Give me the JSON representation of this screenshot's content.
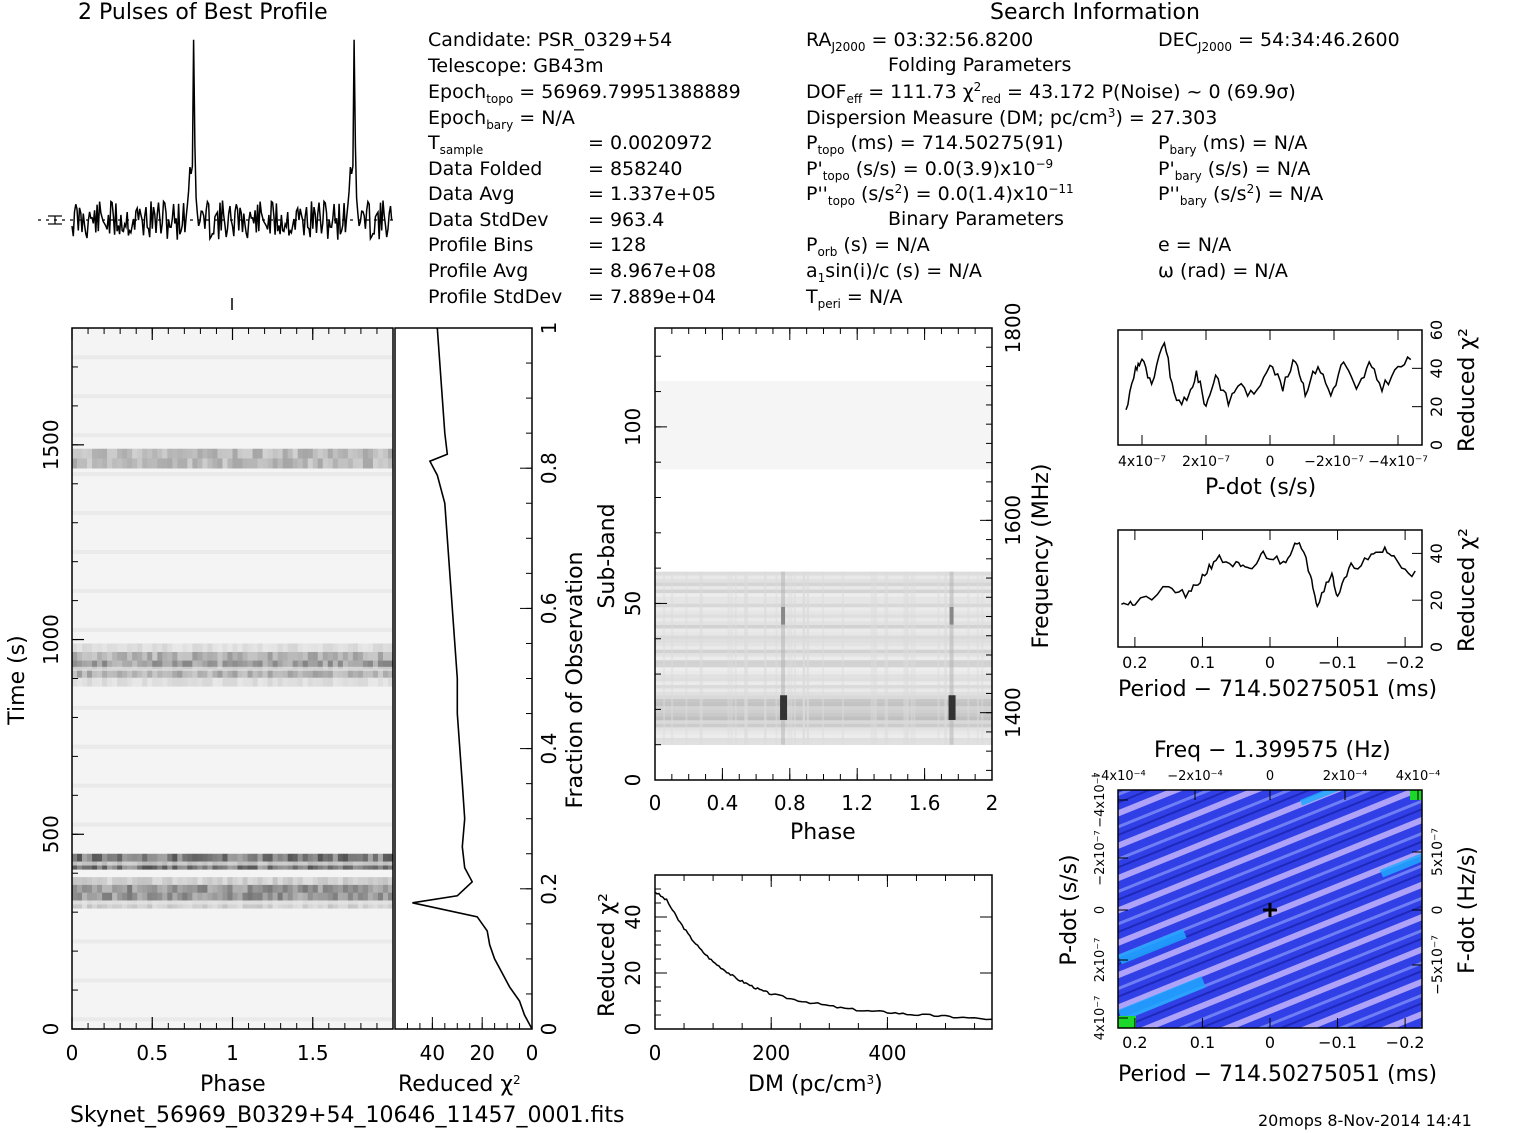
{
  "header": {
    "profile_title": "2 Pulses of Best Profile",
    "search_title": "Search Information",
    "folding_title": "Folding Parameters",
    "binary_title": "Binary Parameters",
    "filename": "Skynet_56969_B0329+54_10646_11457_0001.fits",
    "footer_right": "20mops  8-Nov-2014 14:41"
  },
  "info_left": [
    {
      "label": "Candidate:  PSR_0329+54",
      "value": ""
    },
    {
      "label": "Telescope:  GB43m",
      "value": ""
    },
    {
      "label": "Epoch_topo = 56969.79951388889",
      "value": ""
    },
    {
      "label": "Epoch_bary = N/A",
      "value": ""
    },
    {
      "label": "T_sample",
      "value": "=   0.0020972"
    },
    {
      "label": "Data Folded",
      "value": "=   858240"
    },
    {
      "label": "Data Avg",
      "value": "=   1.337e+05"
    },
    {
      "label": "Data StdDev",
      "value": "=   963.4"
    },
    {
      "label": "Profile Bins",
      "value": "=   128"
    },
    {
      "label": "Profile Avg",
      "value": "=   8.967e+08"
    },
    {
      "label": "Profile StdDev",
      "value": "=   7.889e+04"
    }
  ],
  "info_mid": [
    "RA_J2000 = 03:32:56.8200",
    "DOF_eff = 111.73  χ²_red = 43.172  P(Noise) ~ 0   (69.9σ)",
    "Dispersion Measure (DM; pc/cm³) = 27.303",
    "P_topo (ms) =  714.50275(91)",
    "P'_topo (s/s) = 0.0(3.9)x10⁻⁹",
    "P''_topo (s/s²) = 0.0(1.4)x10⁻¹¹",
    "P_orb (s) = N/A",
    "a₁sin(i)/c (s) = N/A",
    "T_peri = N/A"
  ],
  "info_right": [
    "DEC_J2000 = 54:34:46.2600",
    "P_bary (ms) = N/A",
    "P'_bary (s/s) = N/A",
    "P''_bary (s/s²) = N/A",
    "e = N/A",
    "ω (rad) = N/A"
  ],
  "chart_data": [
    {
      "type": "line",
      "title": "2 Pulses of Best Profile",
      "x": "phase 0-2",
      "description_values": {
        "pulse_peaks_phase": [
          0.76,
          1.76
        ]
      }
    },
    {
      "type": "heatmap",
      "xlabel": "Phase",
      "ylabel": "Time (s)",
      "xticks": [
        "0",
        "0.5",
        "1",
        "1.5"
      ],
      "yticks": [
        "0",
        "500",
        "1000",
        "1500"
      ],
      "ylim": [
        0,
        1800
      ],
      "bright_bands_time_s": [
        [
          310,
          390
        ],
        [
          410,
          450
        ],
        [
          880,
          990
        ],
        [
          1440,
          1490
        ]
      ]
    },
    {
      "type": "line",
      "xlabel": "Reduced χ²",
      "ylabel": "Fraction of Observation",
      "xticks": [
        "40",
        "20",
        "0"
      ],
      "yticks": [
        "0.2",
        "0.4",
        "0.6",
        "0.8",
        "1"
      ],
      "xlim": [
        55,
        0
      ],
      "ylim": [
        0,
        1
      ],
      "points": [
        [
          0,
          0
        ],
        [
          3,
          0.02
        ],
        [
          5,
          0.04
        ],
        [
          9,
          0.06
        ],
        [
          12,
          0.08
        ],
        [
          15,
          0.1
        ],
        [
          17,
          0.12
        ],
        [
          18,
          0.14
        ],
        [
          22,
          0.16
        ],
        [
          48,
          0.18
        ],
        [
          30,
          0.19
        ],
        [
          24,
          0.21
        ],
        [
          27,
          0.23
        ],
        [
          28,
          0.26
        ],
        [
          27,
          0.3
        ],
        [
          28,
          0.35
        ],
        [
          29,
          0.4
        ],
        [
          30,
          0.45
        ],
        [
          30,
          0.5
        ],
        [
          31,
          0.55
        ],
        [
          32,
          0.6
        ],
        [
          33,
          0.65
        ],
        [
          34,
          0.7
        ],
        [
          35,
          0.75
        ],
        [
          38,
          0.79
        ],
        [
          41,
          0.81
        ],
        [
          34,
          0.82
        ],
        [
          35,
          0.85
        ],
        [
          36,
          0.9
        ],
        [
          37,
          0.95
        ],
        [
          38,
          1.0
        ]
      ]
    },
    {
      "type": "heatmap",
      "xlabel": "Phase",
      "ylabel": "Sub-band",
      "y2label": "Frequency (MHz)",
      "xticks": [
        "0",
        "0.4",
        "0.8",
        "1.2",
        "1.6",
        "2"
      ],
      "yticks": [
        "0",
        "50",
        "100"
      ],
      "y2ticks": [
        "1400",
        "1600",
        "1800"
      ],
      "xlim": [
        0,
        2
      ],
      "ylim": [
        0,
        128
      ]
    },
    {
      "type": "line",
      "xlabel": "DM (pc/cm³)",
      "ylabel": "Reduced χ²",
      "xticks": [
        "0",
        "200",
        "400"
      ],
      "yticks": [
        "0",
        "20",
        "40"
      ],
      "xlim": [
        0,
        580
      ],
      "ylim": [
        0,
        55
      ],
      "points": [
        [
          0,
          49
        ],
        [
          20,
          46
        ],
        [
          40,
          39
        ],
        [
          60,
          33
        ],
        [
          80,
          28
        ],
        [
          100,
          24
        ],
        [
          120,
          21
        ],
        [
          140,
          18
        ],
        [
          160,
          16
        ],
        [
          180,
          14
        ],
        [
          200,
          12.5
        ],
        [
          240,
          10.5
        ],
        [
          280,
          9
        ],
        [
          320,
          7.5
        ],
        [
          360,
          6.5
        ],
        [
          400,
          6
        ],
        [
          440,
          5.2
        ],
        [
          480,
          4.8
        ],
        [
          520,
          4.2
        ],
        [
          580,
          3.5
        ]
      ]
    },
    {
      "type": "line",
      "xlabel": "P-dot (s/s)",
      "ylabel": "Reduced χ²",
      "xticks": [
        "4x10⁻⁷",
        "2x10⁻⁷",
        "0",
        "−2x10⁻⁷",
        "−4x10⁻⁷"
      ],
      "yticks": [
        "0",
        "20",
        "40",
        "60"
      ],
      "ylim": [
        0,
        60
      ],
      "points": [
        [
          4.5e-07,
          18
        ],
        [
          4.2e-07,
          40
        ],
        [
          4e-07,
          45
        ],
        [
          3.7e-07,
          30
        ],
        [
          3.3e-07,
          55
        ],
        [
          3e-07,
          25
        ],
        [
          2.6e-07,
          22
        ],
        [
          2.3e-07,
          38
        ],
        [
          2e-07,
          20
        ],
        [
          1.7e-07,
          37
        ],
        [
          1.3e-07,
          22
        ],
        [
          1e-07,
          32
        ],
        [
          5e-08,
          25
        ],
        [
          0,
          44
        ],
        [
          -4e-08,
          30
        ],
        [
          -8e-08,
          45
        ],
        [
          -1.1e-07,
          28
        ],
        [
          -1.5e-07,
          42
        ],
        [
          -1.9e-07,
          26
        ],
        [
          -2.3e-07,
          44
        ],
        [
          -2.7e-07,
          28
        ],
        [
          -3.1e-07,
          42
        ],
        [
          -3.5e-07,
          30
        ],
        [
          -4e-07,
          40
        ],
        [
          -4.5e-07,
          46
        ]
      ]
    },
    {
      "type": "line",
      "xlabel": "Period − 714.50275051 (ms)",
      "ylabel": "Reduced χ²",
      "xticks": [
        "0.2",
        "0.1",
        "0",
        "−0.1",
        "−0.2"
      ],
      "yticks": [
        "0",
        "20",
        "40"
      ],
      "ylim": [
        0,
        50
      ],
      "points": [
        [
          0.22,
          20
        ],
        [
          0.2,
          18
        ],
        [
          0.15,
          25
        ],
        [
          0.12,
          22
        ],
        [
          0.1,
          30
        ],
        [
          0.08,
          38
        ],
        [
          0.05,
          35
        ],
        [
          0.03,
          32
        ],
        [
          0.01,
          40
        ],
        [
          -0.02,
          36
        ],
        [
          -0.04,
          46
        ],
        [
          -0.06,
          32
        ],
        [
          -0.07,
          18
        ],
        [
          -0.09,
          32
        ],
        [
          -0.1,
          22
        ],
        [
          -0.12,
          34
        ],
        [
          -0.15,
          38
        ],
        [
          -0.17,
          42
        ],
        [
          -0.19,
          36
        ],
        [
          -0.22,
          30
        ]
      ]
    },
    {
      "type": "heatmap",
      "title": "Freq − 1.399575 (Hz)",
      "xlabel": "Period − 714.50275051 (ms)",
      "ylabel": "P-dot (s/s)",
      "y2label": "F-dot (Hz/s)",
      "xticks": [
        "0.2",
        "0.1",
        "0",
        "−0.1",
        "−0.2"
      ],
      "x2ticks": [
        "−4x10⁻⁴",
        "−2x10⁻⁴",
        "0",
        "2x10⁻⁴",
        "4x10⁻⁴"
      ],
      "yticks": [
        "4x10⁻⁷",
        "2x10⁻⁷",
        "0",
        "−2x10⁻⁷",
        "−4x10⁻⁷"
      ],
      "y2ticks": [
        "−5x10⁻⁷",
        "0",
        "5x10⁻⁷"
      ],
      "colors": {
        "base": "#2a3ae0",
        "mid": "#20a8ff",
        "high": "#1bd82a",
        "low": "#d8b8ff"
      }
    }
  ]
}
